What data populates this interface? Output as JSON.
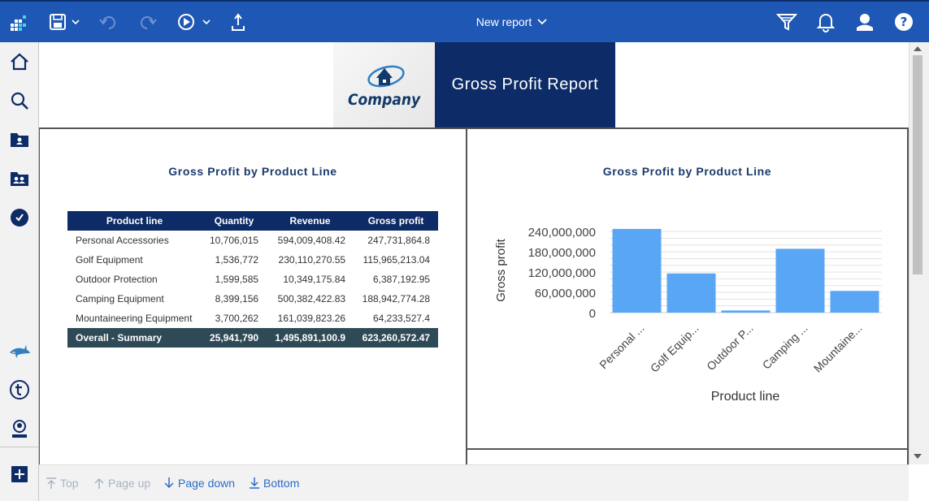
{
  "topbar": {
    "title": "New report",
    "icons": [
      "apps-icon",
      "save-icon",
      "undo-icon",
      "redo-icon",
      "run-icon",
      "share-icon",
      "filter-icon",
      "notification-icon",
      "user-icon",
      "help-icon"
    ]
  },
  "sidebar": {
    "icons": [
      "home-icon",
      "search-icon",
      "my-content-icon",
      "team-content-icon",
      "recent-icon",
      "shark-icon",
      "t-icon",
      "profile-badge-icon",
      "add-icon"
    ]
  },
  "report": {
    "logo_text": "Company",
    "title": "Gross Profit Report",
    "table_panel": {
      "title": "Gross Profit by Product Line",
      "columns": [
        "Product line",
        "Quantity",
        "Revenue",
        "Gross profit"
      ],
      "rows": [
        [
          "Personal Accessories",
          "10,706,015",
          "594,009,408.42",
          "247,731,864.8"
        ],
        [
          "Golf Equipment",
          "1,536,772",
          "230,110,270.55",
          "115,965,213.04"
        ],
        [
          "Outdoor Protection",
          "1,599,585",
          "10,349,175.84",
          "6,387,192.95"
        ],
        [
          "Camping Equipment",
          "8,399,156",
          "500,382,422.83",
          "188,942,774.28"
        ],
        [
          "Mountaineering Equipment",
          "3,700,262",
          "161,039,823.26",
          "64,233,527.4"
        ]
      ],
      "summary": [
        "Overall - Summary",
        "25,941,790",
        "1,495,891,100.9",
        "623,260,572.47"
      ]
    }
  },
  "chart_data": {
    "type": "bar",
    "title": "Gross Profit by Product Line",
    "categories": [
      "Personal ...",
      "Golf Equip...",
      "Outdoor P...",
      "Camping ...",
      "Mountaine..."
    ],
    "values": [
      247731864.8,
      115965213.04,
      6387192.95,
      188942774.28,
      64233527.4
    ],
    "xlabel": "Product line",
    "ylabel": "Gross profit",
    "yticks": [
      "0",
      "60,000,000",
      "120,000,000",
      "180,000,000",
      "240,000,000"
    ],
    "ylim": [
      0,
      250000000
    ],
    "grid": true,
    "bar_color": "#59a6f5"
  },
  "bottomnav": {
    "top": "Top",
    "page_up": "Page up",
    "page_down": "Page down",
    "bottom": "Bottom"
  },
  "colors": {
    "topbar": "#1f57b4",
    "header_dark": "#0d2b66",
    "summary_row": "#2f4a57",
    "link": "#2c6bc7"
  }
}
